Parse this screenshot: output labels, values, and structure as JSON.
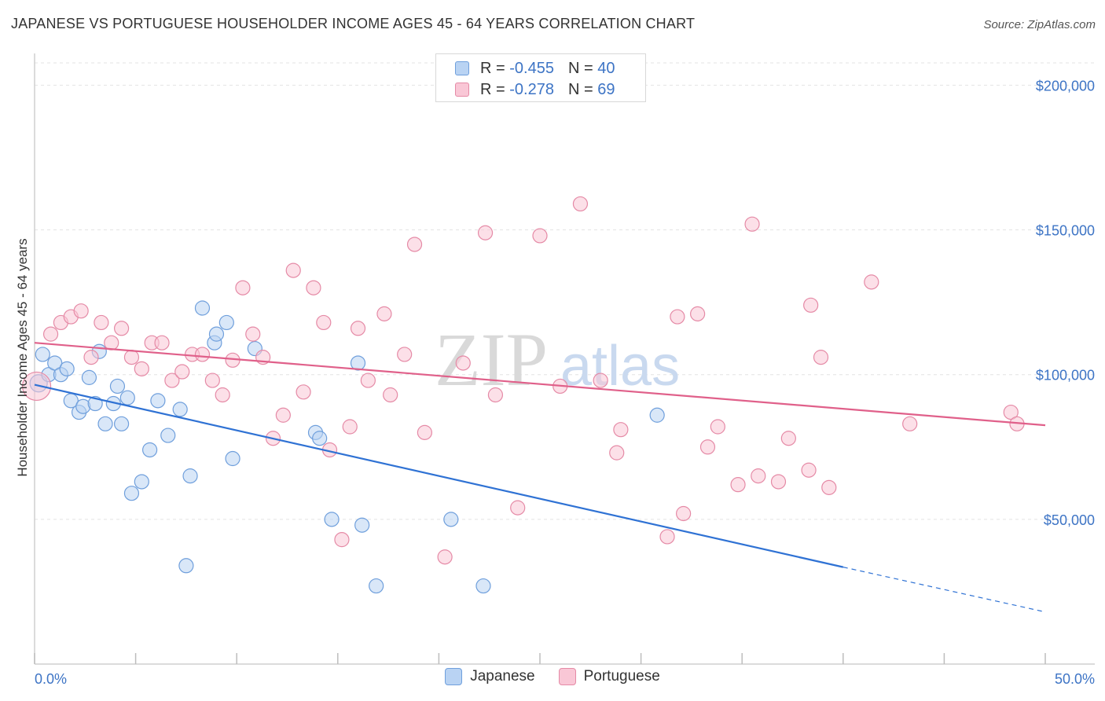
{
  "header": {
    "title": "JAPANESE VS PORTUGUESE HOUSEHOLDER INCOME AGES 45 - 64 YEARS CORRELATION CHART",
    "source": "Source: ZipAtlas.com"
  },
  "watermark": {
    "zip": "ZIP",
    "atlas": "atlas"
  },
  "legend": {
    "rows": [
      {
        "r_label": "R =",
        "r_value": "-0.455",
        "n_label": "N =",
        "n_value": "40",
        "color": "#b9d3f3",
        "border": "#6f9fdc"
      },
      {
        "r_label": "R =",
        "r_value": "-0.278",
        "n_label": "N =",
        "n_value": "69",
        "color": "#f9c7d6",
        "border": "#e58aa6"
      }
    ]
  },
  "chart_data": {
    "type": "scatter",
    "title": "JAPANESE VS PORTUGUESE HOUSEHOLDER INCOME AGES 45 - 64 YEARS CORRELATION CHART",
    "xlabel": "",
    "ylabel": "Householder Income Ages 45 - 64 years",
    "xlim": [
      0,
      50
    ],
    "ylim": [
      0,
      205000
    ],
    "x_tick_labels": [
      "0.0%",
      "50.0%"
    ],
    "y_ticks": [
      50000,
      100000,
      150000,
      200000
    ],
    "y_tick_labels": [
      "$50,000",
      "$100,000",
      "$150,000",
      "$200,000"
    ],
    "grid": true,
    "legend_position": "top-center",
    "series": [
      {
        "name": "Japanese",
        "color": "#b9d3f3",
        "edge": "#6f9fdc",
        "line_color": "#2f72d4",
        "trend": {
          "x_start": 0,
          "y_start": 96500,
          "x_end": 40,
          "y_end": 33500,
          "x_dash_end": 50,
          "y_dash_end": 18000
        },
        "points": [
          [
            0.2,
            97000
          ],
          [
            0.4,
            107000
          ],
          [
            0.7,
            100000
          ],
          [
            1.0,
            104000
          ],
          [
            1.3,
            100000
          ],
          [
            1.6,
            102000
          ],
          [
            1.8,
            91000
          ],
          [
            2.2,
            87000
          ],
          [
            2.4,
            89000
          ],
          [
            2.7,
            99000
          ],
          [
            3.0,
            90000
          ],
          [
            3.2,
            108000
          ],
          [
            3.5,
            83000
          ],
          [
            3.9,
            90000
          ],
          [
            4.1,
            96000
          ],
          [
            4.3,
            83000
          ],
          [
            4.6,
            92000
          ],
          [
            4.8,
            59000
          ],
          [
            5.3,
            63000
          ],
          [
            5.7,
            74000
          ],
          [
            6.1,
            91000
          ],
          [
            6.6,
            79000
          ],
          [
            7.2,
            88000
          ],
          [
            7.5,
            34000
          ],
          [
            7.7,
            65000
          ],
          [
            8.3,
            123000
          ],
          [
            8.9,
            111000
          ],
          [
            9.0,
            114000
          ],
          [
            9.5,
            118000
          ],
          [
            9.8,
            71000
          ],
          [
            10.9,
            109000
          ],
          [
            13.9,
            80000
          ],
          [
            14.1,
            78000
          ],
          [
            14.7,
            50000
          ],
          [
            16.0,
            104000
          ],
          [
            16.2,
            48000
          ],
          [
            16.9,
            27000
          ],
          [
            20.6,
            50000
          ],
          [
            22.2,
            27000
          ],
          [
            30.8,
            86000
          ]
        ]
      },
      {
        "name": "Portuguese",
        "color": "#f9c7d6",
        "edge": "#e58aa6",
        "line_color": "#e0608a",
        "trend": {
          "x_start": 0,
          "y_start": 111000,
          "x_end": 50,
          "y_end": 82500
        },
        "points": [
          [
            0.1,
            96000
          ],
          [
            0.8,
            114000
          ],
          [
            1.3,
            118000
          ],
          [
            1.8,
            120000
          ],
          [
            2.3,
            122000
          ],
          [
            2.8,
            106000
          ],
          [
            3.3,
            118000
          ],
          [
            3.8,
            111000
          ],
          [
            4.3,
            116000
          ],
          [
            4.8,
            106000
          ],
          [
            5.3,
            102000
          ],
          [
            5.8,
            111000
          ],
          [
            6.3,
            111000
          ],
          [
            6.8,
            98000
          ],
          [
            7.3,
            101000
          ],
          [
            7.8,
            107000
          ],
          [
            8.3,
            107000
          ],
          [
            8.8,
            98000
          ],
          [
            9.3,
            93000
          ],
          [
            9.8,
            105000
          ],
          [
            10.3,
            130000
          ],
          [
            10.8,
            114000
          ],
          [
            11.3,
            106000
          ],
          [
            11.8,
            78000
          ],
          [
            12.3,
            86000
          ],
          [
            12.8,
            136000
          ],
          [
            13.3,
            94000
          ],
          [
            13.8,
            130000
          ],
          [
            14.3,
            118000
          ],
          [
            14.6,
            74000
          ],
          [
            15.2,
            43000
          ],
          [
            15.6,
            82000
          ],
          [
            16.0,
            116000
          ],
          [
            16.5,
            98000
          ],
          [
            17.3,
            121000
          ],
          [
            17.6,
            93000
          ],
          [
            18.3,
            107000
          ],
          [
            18.8,
            145000
          ],
          [
            19.3,
            80000
          ],
          [
            20.3,
            37000
          ],
          [
            21.2,
            104000
          ],
          [
            22.3,
            149000
          ],
          [
            22.8,
            93000
          ],
          [
            23.9,
            54000
          ],
          [
            25.0,
            148000
          ],
          [
            26.0,
            96000
          ],
          [
            27.0,
            159000
          ],
          [
            28.0,
            98000
          ],
          [
            28.8,
            73000
          ],
          [
            29.0,
            81000
          ],
          [
            31.3,
            44000
          ],
          [
            31.8,
            120000
          ],
          [
            32.1,
            52000
          ],
          [
            32.8,
            121000
          ],
          [
            33.3,
            75000
          ],
          [
            33.8,
            82000
          ],
          [
            34.8,
            62000
          ],
          [
            35.5,
            152000
          ],
          [
            35.8,
            65000
          ],
          [
            36.8,
            63000
          ],
          [
            37.3,
            78000
          ],
          [
            38.3,
            67000
          ],
          [
            38.4,
            124000
          ],
          [
            38.9,
            106000
          ],
          [
            39.3,
            61000
          ],
          [
            41.4,
            132000
          ],
          [
            43.3,
            83000
          ],
          [
            48.3,
            87000
          ],
          [
            48.6,
            83000
          ]
        ]
      }
    ]
  }
}
